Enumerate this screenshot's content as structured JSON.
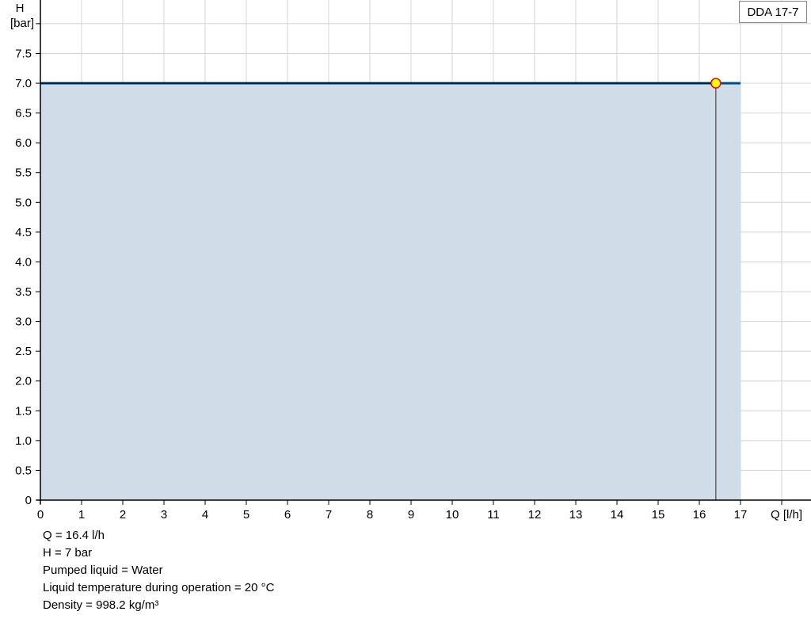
{
  "chart_data": {
    "type": "area",
    "xlabel": "Q [l/h]",
    "ylabel_line1": "H",
    "ylabel_line2": "[bar]",
    "xlim": [
      0,
      18
    ],
    "ylim": [
      0,
      8
    ],
    "x_ticks": [
      0,
      1,
      2,
      3,
      4,
      5,
      6,
      7,
      8,
      9,
      10,
      11,
      12,
      13,
      14,
      15,
      16,
      17
    ],
    "y_ticks": [
      "0",
      "0.5",
      "1.0",
      "1.5",
      "2.0",
      "2.5",
      "3.0",
      "3.5",
      "4.0",
      "4.5",
      "5.0",
      "5.5",
      "6.0",
      "6.5",
      "7.0",
      "7.5"
    ],
    "grid": true,
    "series": [
      {
        "name": "DDA 17-7",
        "x": [
          0,
          17
        ],
        "y": [
          7.0,
          7.0
        ],
        "color": "#004a87",
        "fill": "#d0dce8"
      }
    ],
    "operating_point": {
      "x": 16.4,
      "y": 7.0,
      "color": "#ffff00",
      "stroke": "#e00000"
    },
    "legend": "top-right"
  },
  "info": [
    "Q = 16.4 l/h",
    "H = 7 bar",
    "Pumped liquid = Water",
    "Liquid temperature during operation = 20 °C",
    "Density = 998.2 kg/m³"
  ]
}
